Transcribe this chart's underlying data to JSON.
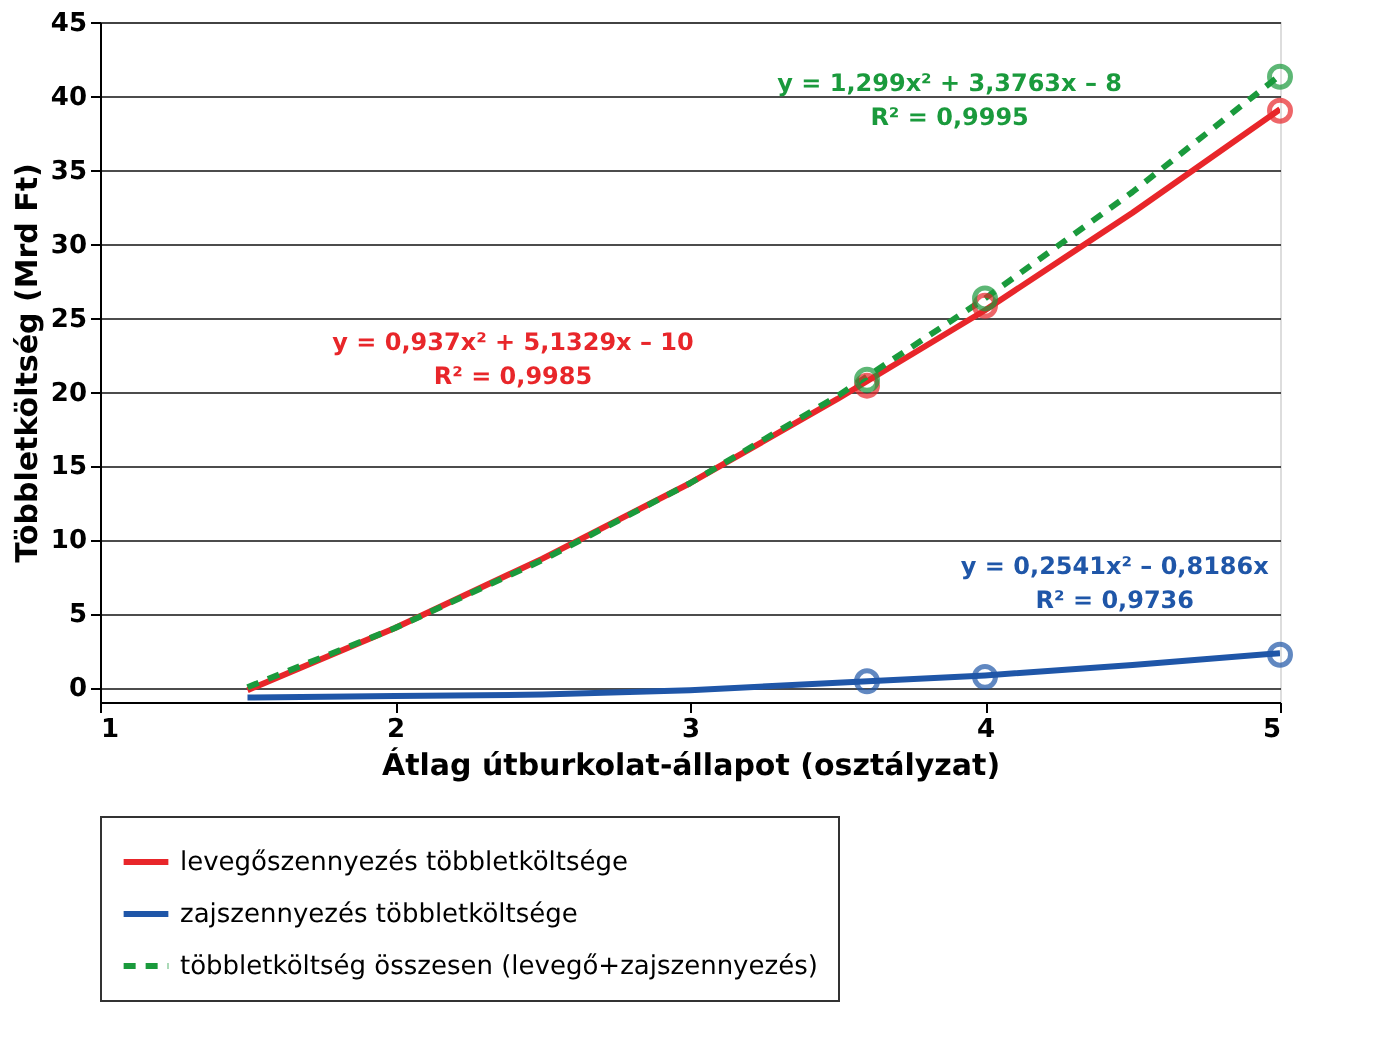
{
  "chart_data": {
    "type": "line",
    "xlabel": "Átlag útburkolat-állapot (osztályzat)",
    "ylabel": "Többletköltség (Mrd Ft)",
    "xlim": [
      1,
      5
    ],
    "xticks": [
      1,
      2,
      3,
      4,
      5
    ],
    "ylim": [
      -1,
      45
    ],
    "yticks": [
      0,
      5,
      10,
      15,
      20,
      25,
      30,
      35,
      40,
      45
    ],
    "grid": "y",
    "legend": "bottom",
    "series": [
      {
        "name": "levegőszennyezés többletköltsége",
        "line_style": "solid",
        "color": "#e8262a",
        "x": [
          1.5,
          2,
          2.5,
          3,
          3.5,
          4,
          4.5,
          5
        ],
        "values": [
          -0.2,
          4.0,
          8.7,
          13.8,
          19.5,
          25.5,
          32.1,
          39.1
        ]
      },
      {
        "name": "zajszennyezés többletköltsége",
        "line_style": "solid",
        "color": "#1f56a8",
        "x": [
          1.5,
          2,
          2.5,
          3,
          3.5,
          4,
          4.5,
          5
        ],
        "values": [
          -0.7,
          -0.6,
          -0.5,
          -0.2,
          0.3,
          0.8,
          1.5,
          2.3
        ]
      },
      {
        "name": "többletköltség összesen (levegő+zajszennyezés)",
        "line_style": "dashed",
        "color": "#1a9a3c",
        "x": [
          1.5,
          2,
          2.5,
          3,
          3.5,
          4,
          4.5,
          5
        ],
        "values": [
          0.0,
          4.0,
          8.6,
          13.8,
          19.7,
          26.3,
          33.5,
          41.4
        ]
      },
      {
        "type": "scatter",
        "marker": "circle",
        "color": "#e8262a",
        "x": [
          3.6,
          4,
          5
        ],
        "values": [
          20.4,
          25.8,
          39.0
        ]
      },
      {
        "type": "scatter",
        "marker": "circle",
        "color": "#1f56a8",
        "x": [
          3.6,
          4,
          5
        ],
        "values": [
          0.4,
          0.7,
          2.2
        ]
      },
      {
        "type": "scatter",
        "marker": "circle",
        "color": "#1a9a3c",
        "x": [
          3.6,
          4,
          5
        ],
        "values": [
          20.8,
          26.3,
          41.3
        ]
      }
    ],
    "annotations": [
      "y = 0,937x² + 5,1329x – 10\nR² = 0,9985",
      "y = 0,2541x² – 0,8186x\nR² = 0,9736",
      "y = 1,299x² + 3,3763x – 8\nR² = 0,9995"
    ]
  }
}
